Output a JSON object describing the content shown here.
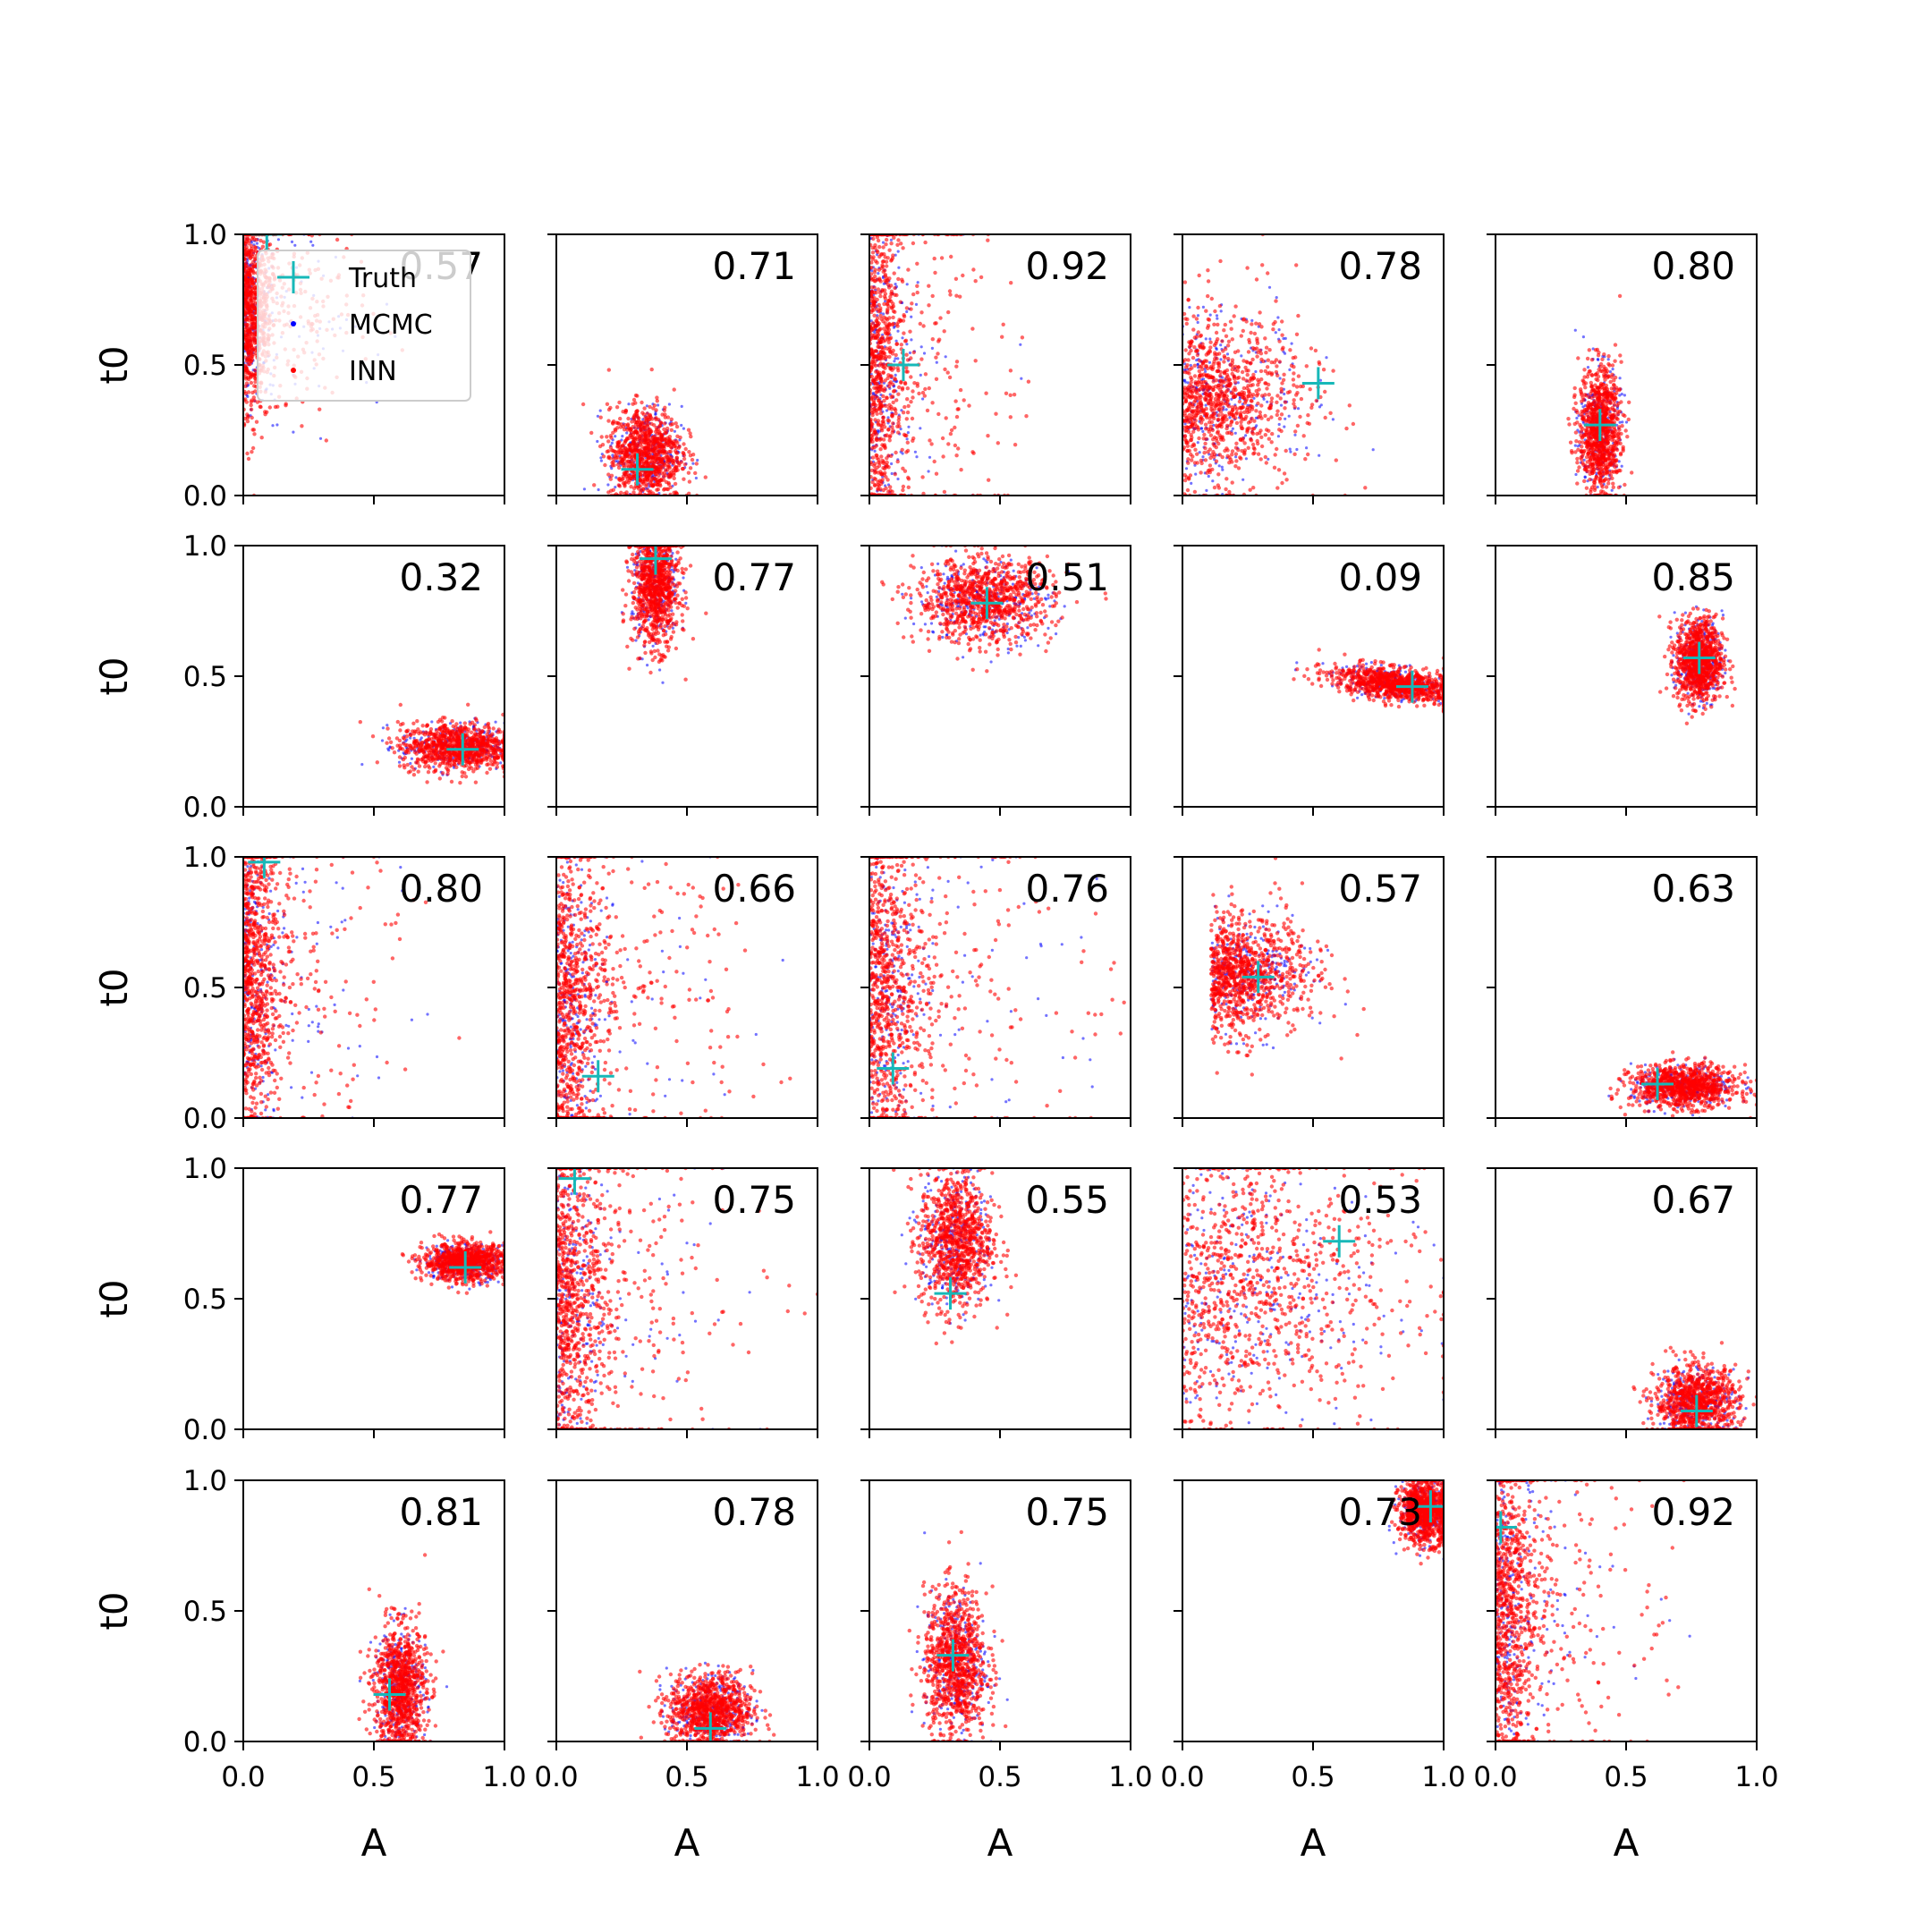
{
  "chart_data": {
    "type": "scatter",
    "layout": "5x5 grid of subplots",
    "xlabel": "A",
    "ylabel": "t0",
    "xlim": [
      0,
      1
    ],
    "ylim": [
      0,
      1
    ],
    "x_ticks": [
      "0.0",
      "0.5",
      "1.0"
    ],
    "y_ticks": [
      "0.0",
      "0.5",
      "1.0"
    ],
    "grid": false,
    "legend": {
      "placement": "upper-left of first panel",
      "entries": [
        {
          "label": "Truth",
          "marker": "plus",
          "color": "#17b8b8"
        },
        {
          "label": "MCMC",
          "marker": "dot",
          "color": "#0000ff"
        },
        {
          "label": "INN",
          "marker": "dot",
          "color": "#ff0000"
        }
      ]
    },
    "colors": {
      "truth": "#17b8b8",
      "mcmc": "#0000ff",
      "inn": "#ff0000"
    },
    "panels": [
      {
        "score": "0.57",
        "truth": [
          0.09,
          1.0
        ],
        "shape": "wide-low",
        "inn_center": [
          0.2,
          0.72
        ],
        "inn_spread": [
          0.22,
          0.28
        ]
      },
      {
        "score": "0.71",
        "truth": [
          0.31,
          0.1
        ],
        "shape": "blob",
        "inn_center": [
          0.34,
          0.16
        ],
        "inn_spread": [
          0.07,
          0.09
        ]
      },
      {
        "score": "0.92",
        "truth": [
          0.13,
          0.5
        ],
        "shape": "wide-low",
        "inn_center": [
          0.07,
          0.5
        ],
        "inn_spread": [
          0.25,
          0.5
        ]
      },
      {
        "score": "0.78",
        "truth": [
          0.52,
          0.43
        ],
        "shape": "fan",
        "inn_center": [
          0.18,
          0.37
        ],
        "inn_spread": [
          0.2,
          0.22
        ]
      },
      {
        "score": "0.80",
        "truth": [
          0.4,
          0.27
        ],
        "shape": "blob",
        "inn_center": [
          0.4,
          0.25
        ],
        "inn_spread": [
          0.04,
          0.12
        ]
      },
      {
        "score": "0.32",
        "truth": [
          0.84,
          0.22
        ],
        "shape": "blob",
        "inn_center": [
          0.82,
          0.23
        ],
        "inn_spread": [
          0.11,
          0.045
        ]
      },
      {
        "score": "0.77",
        "truth": [
          0.38,
          0.95
        ],
        "shape": "blob",
        "inn_center": [
          0.38,
          0.85
        ],
        "inn_spread": [
          0.045,
          0.12
        ]
      },
      {
        "score": "0.51",
        "truth": [
          0.45,
          0.78
        ],
        "shape": "blob",
        "inn_center": [
          0.44,
          0.79
        ],
        "inn_spread": [
          0.13,
          0.08
        ]
      },
      {
        "score": "0.09",
        "truth": [
          0.88,
          0.46
        ],
        "shape": "streak",
        "inn_center": [
          0.82,
          0.47
        ],
        "inn_spread": [
          0.14,
          0.03
        ]
      },
      {
        "score": "0.85",
        "truth": [
          0.78,
          0.57
        ],
        "shape": "blob",
        "inn_center": [
          0.78,
          0.56
        ],
        "inn_spread": [
          0.045,
          0.08
        ]
      },
      {
        "score": "0.80",
        "truth": [
          0.08,
          0.98
        ],
        "shape": "wide-low",
        "inn_center": [
          0.07,
          0.55
        ],
        "inn_spread": [
          0.25,
          0.45
        ]
      },
      {
        "score": "0.66",
        "truth": [
          0.16,
          0.16
        ],
        "shape": "wide-low",
        "inn_center": [
          0.08,
          0.45
        ],
        "inn_spread": [
          0.35,
          0.45
        ]
      },
      {
        "score": "0.76",
        "truth": [
          0.09,
          0.19
        ],
        "shape": "wide-low",
        "inn_center": [
          0.1,
          0.5
        ],
        "inn_spread": [
          0.4,
          0.45
        ]
      },
      {
        "score": "0.57",
        "truth": [
          0.29,
          0.54
        ],
        "shape": "fan",
        "inn_center": [
          0.27,
          0.55
        ],
        "inn_spread": [
          0.16,
          0.15
        ]
      },
      {
        "score": "0.63",
        "truth": [
          0.62,
          0.13
        ],
        "shape": "blob",
        "inn_center": [
          0.72,
          0.12
        ],
        "inn_spread": [
          0.1,
          0.04
        ]
      },
      {
        "score": "0.77",
        "truth": [
          0.85,
          0.62
        ],
        "shape": "blob",
        "inn_center": [
          0.85,
          0.64
        ],
        "inn_spread": [
          0.08,
          0.035
        ]
      },
      {
        "score": "0.75",
        "truth": [
          0.07,
          0.96
        ],
        "shape": "wide-low",
        "inn_center": [
          0.08,
          0.5
        ],
        "inn_spread": [
          0.35,
          0.45
        ]
      },
      {
        "score": "0.55",
        "truth": [
          0.31,
          0.52
        ],
        "shape": "blob",
        "inn_center": [
          0.33,
          0.72
        ],
        "inn_spread": [
          0.07,
          0.13
        ]
      },
      {
        "score": "0.53",
        "truth": [
          0.6,
          0.72
        ],
        "shape": "fan",
        "inn_center": [
          0.15,
          0.55
        ],
        "inn_spread": [
          0.35,
          0.4
        ]
      },
      {
        "score": "0.67",
        "truth": [
          0.77,
          0.07
        ],
        "shape": "blob",
        "inn_center": [
          0.77,
          0.1
        ],
        "inn_spread": [
          0.08,
          0.07
        ]
      },
      {
        "score": "0.81",
        "truth": [
          0.56,
          0.18
        ],
        "shape": "blob",
        "inn_center": [
          0.6,
          0.2
        ],
        "inn_spread": [
          0.05,
          0.12
        ]
      },
      {
        "score": "0.78",
        "truth": [
          0.59,
          0.05
        ],
        "shape": "blob",
        "inn_center": [
          0.59,
          0.12
        ],
        "inn_spread": [
          0.08,
          0.07
        ]
      },
      {
        "score": "0.75",
        "truth": [
          0.32,
          0.33
        ],
        "shape": "blob",
        "inn_center": [
          0.33,
          0.3
        ],
        "inn_spread": [
          0.06,
          0.14
        ]
      },
      {
        "score": "0.73",
        "truth": [
          0.95,
          0.9
        ],
        "shape": "blob",
        "inn_center": [
          0.93,
          0.88
        ],
        "inn_spread": [
          0.05,
          0.06
        ]
      },
      {
        "score": "0.92",
        "truth": [
          0.02,
          0.82
        ],
        "shape": "wide-low",
        "inn_center": [
          0.05,
          0.5
        ],
        "inn_spread": [
          0.3,
          0.45
        ]
      }
    ]
  }
}
